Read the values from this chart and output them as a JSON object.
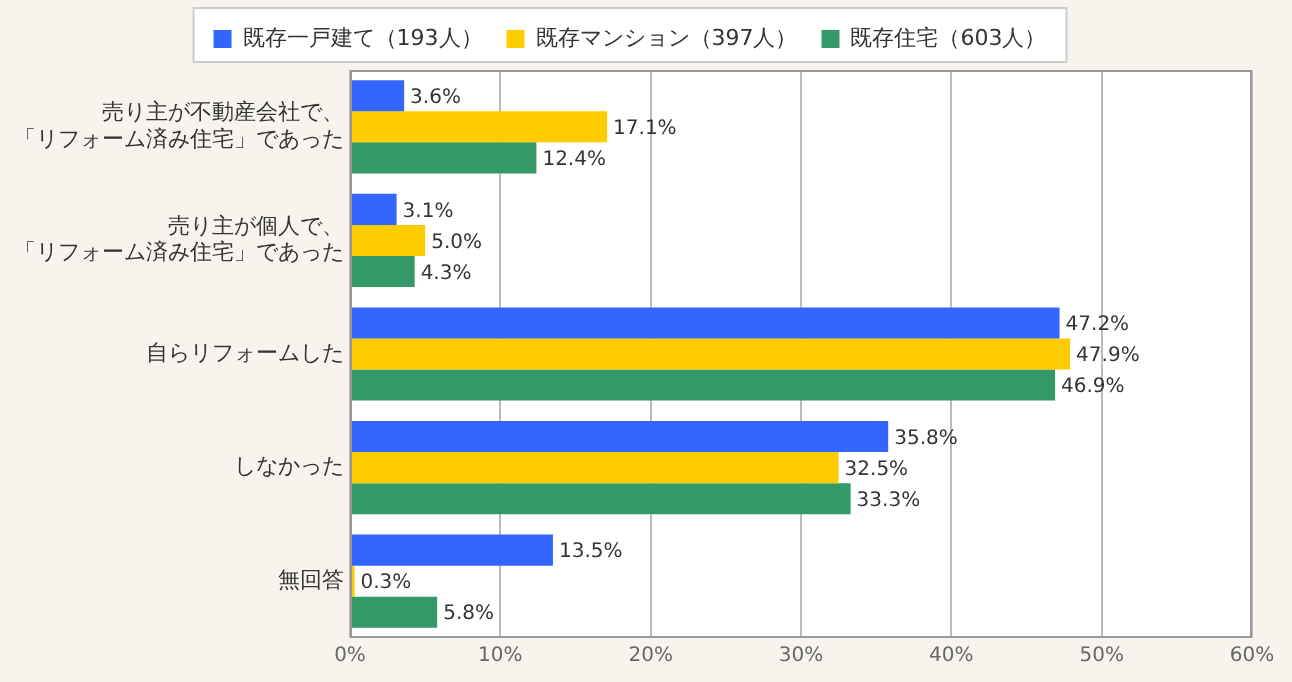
{
  "chart_data": {
    "type": "bar",
    "orientation": "horizontal",
    "categories": [
      "売り主が不動産会社で、「リフォーム済み住宅」であった",
      "売り主が個人で、「リフォーム済み住宅」であった",
      "自らリフォームした",
      "しなかった",
      "無回答"
    ],
    "series": [
      {
        "name": "既存一戸建て（193人）",
        "color": "#3366ff",
        "values": [
          3.6,
          3.1,
          47.2,
          35.8,
          13.5
        ],
        "value_labels": [
          "3.6%",
          "3.1%",
          "47.2%",
          "35.8%",
          "13.5%"
        ]
      },
      {
        "name": "既存マンション（397人）",
        "color": "#ffcc00",
        "values": [
          17.1,
          5.0,
          47.9,
          32.5,
          0.3
        ],
        "value_labels": [
          "17.1%",
          "5.0%",
          "47.9%",
          "32.5%",
          "0.3%"
        ]
      },
      {
        "name": "既存住宅（603人）",
        "color": "#339966",
        "values": [
          12.4,
          4.3,
          46.9,
          33.3,
          5.8
        ],
        "value_labels": [
          "12.4%",
          "4.3%",
          "46.9%",
          "33.3%",
          "5.8%"
        ]
      }
    ],
    "xlim": [
      0,
      60
    ],
    "xticks": [
      {
        "value": 0,
        "label": "0%"
      },
      {
        "value": 10,
        "label": "10%"
      },
      {
        "value": 20,
        "label": "20%"
      },
      {
        "value": 30,
        "label": "30%"
      },
      {
        "value": 40,
        "label": "40%"
      },
      {
        "value": 50,
        "label": "50%"
      },
      {
        "value": 60,
        "label": "60%"
      }
    ],
    "grid": "x",
    "legend": "top"
  }
}
